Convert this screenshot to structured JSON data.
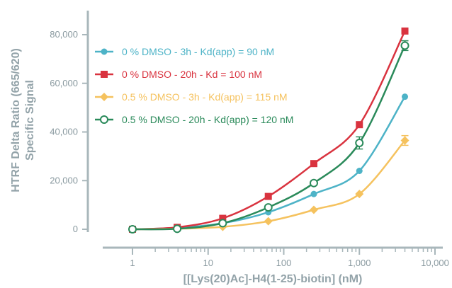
{
  "chart_data": {
    "type": "scatter",
    "xscale": "log",
    "xlim": [
      1,
      10000
    ],
    "ylim": [
      0,
      90000
    ],
    "xlabel": "[[Lys(20)Ac]-H4(1-25)-biotin] (nM)",
    "ylabel": [
      "HTRF Delta Ratio (665/620)",
      "Specific Signal"
    ],
    "xticks": [
      {
        "value": 1,
        "label": "1"
      },
      {
        "value": 10,
        "label": "10"
      },
      {
        "value": 100,
        "label": "100"
      },
      {
        "value": 1000,
        "label": "1,000"
      },
      {
        "value": 10000,
        "label": "10,000"
      }
    ],
    "yticks": [
      {
        "value": 0,
        "label": "0"
      },
      {
        "value": 20000,
        "label": "20,000"
      },
      {
        "value": 40000,
        "label": "40,000"
      },
      {
        "value": 60000,
        "label": "60,000"
      },
      {
        "value": 80000,
        "label": "80,000"
      }
    ],
    "grid": false,
    "legend_position": "top-left",
    "x": [
      1,
      3.9,
      15.6,
      62.5,
      250,
      1000,
      4000
    ],
    "series": [
      {
        "name": "0 % DMSO - 3h - Kd(app) = 90 nM",
        "color": "#4db3c7",
        "marker": "circle",
        "values": [
          0,
          600,
          2500,
          7000,
          14500,
          24000,
          54500
        ],
        "errors": [
          0,
          0,
          0,
          0,
          0,
          0,
          0
        ]
      },
      {
        "name": "0 % DMSO - 20h - Kd = 100 nM",
        "color": "#d9333f",
        "marker": "square",
        "values": [
          0,
          800,
          4500,
          13500,
          27000,
          43000,
          81500
        ],
        "errors": [
          0,
          0,
          0,
          0,
          0,
          0,
          0
        ]
      },
      {
        "name": "0.5 % DMSO - 3h - Kd(app) = 115 nM",
        "color": "#f5c25e",
        "marker": "diamond",
        "values": [
          0,
          200,
          1000,
          3300,
          8000,
          14500,
          36500
        ],
        "errors": [
          0,
          0,
          0,
          0,
          0,
          0,
          2000
        ]
      },
      {
        "name": "0.5 % DMSO - 20h - Kd(app) = 120 nM",
        "color": "#2a8a5a",
        "marker": "open-circle",
        "values": [
          0,
          200,
          2500,
          9000,
          19000,
          35500,
          75500
        ],
        "errors": [
          0,
          0,
          0,
          0,
          0,
          2500,
          2000
        ]
      }
    ]
  }
}
